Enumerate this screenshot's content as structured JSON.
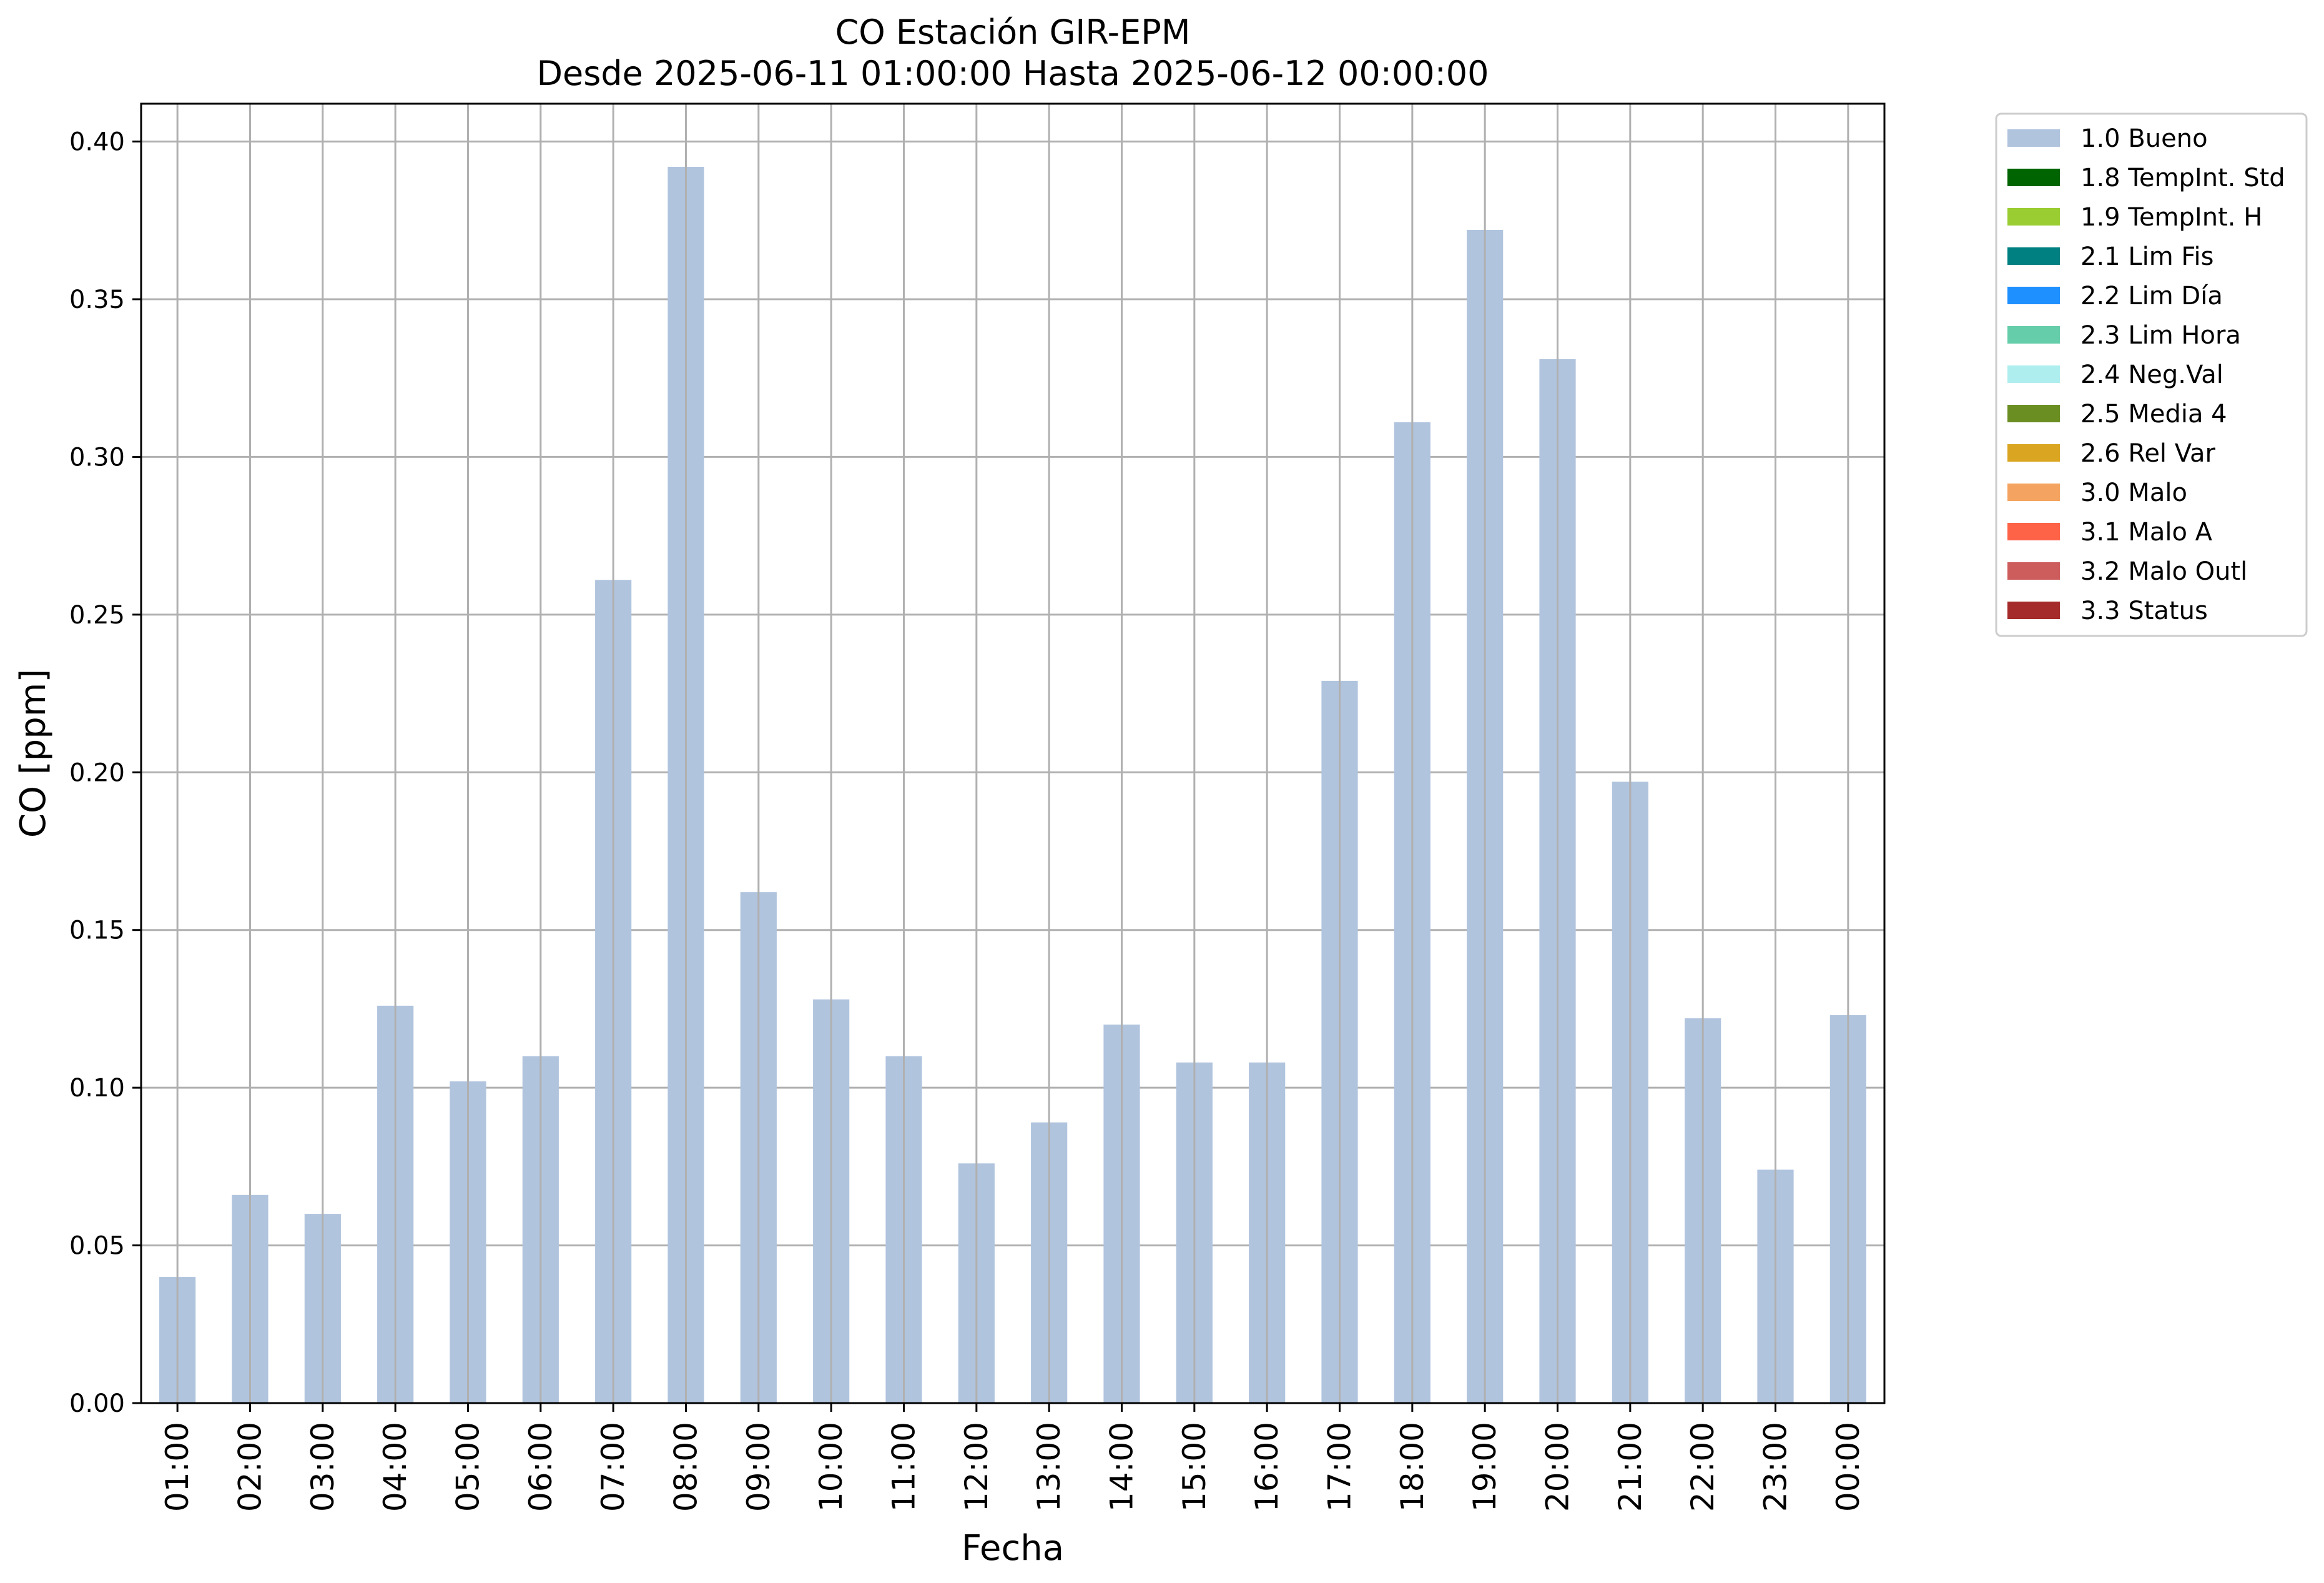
{
  "chart_data": {
    "type": "bar",
    "title": "CO Estación GIR-EPM",
    "subtitle": "Desde 2025-06-11 01:00:00 Hasta 2025-06-12 00:00:00",
    "xlabel": "Fecha",
    "ylabel": "CO [ppm]",
    "ylim": [
      0,
      0.412
    ],
    "yticks": [
      "0.00",
      "0.05",
      "0.10",
      "0.15",
      "0.20",
      "0.25",
      "0.30",
      "0.35",
      "0.40"
    ],
    "ytick_values": [
      0,
      0.05,
      0.1,
      0.15,
      0.2,
      0.25,
      0.3,
      0.35,
      0.4
    ],
    "grid": true,
    "legend_position": "outside-right",
    "categories": [
      "01:00",
      "02:00",
      "03:00",
      "04:00",
      "05:00",
      "06:00",
      "07:00",
      "08:00",
      "09:00",
      "10:00",
      "11:00",
      "12:00",
      "13:00",
      "14:00",
      "15:00",
      "16:00",
      "17:00",
      "18:00",
      "19:00",
      "20:00",
      "21:00",
      "22:00",
      "23:00",
      "00:00"
    ],
    "series": [
      {
        "name": "1.0 Bueno",
        "color": "#b0c4de",
        "values": [
          0.04,
          0.066,
          0.06,
          0.126,
          0.102,
          0.11,
          0.261,
          0.392,
          0.162,
          0.128,
          0.11,
          0.076,
          0.089,
          0.12,
          0.108,
          0.108,
          0.229,
          0.311,
          0.372,
          0.331,
          0.197,
          0.122,
          0.074,
          0.123
        ]
      }
    ],
    "legend": [
      {
        "label": "1.0 Bueno",
        "color": "#b0c4de"
      },
      {
        "label": "1.8 TempInt. Std",
        "color": "#006400"
      },
      {
        "label": "1.9 TempInt. H",
        "color": "#9acd32"
      },
      {
        "label": "2.1 Lim Fis",
        "color": "#008080"
      },
      {
        "label": "2.2 Lim Día",
        "color": "#1e90ff"
      },
      {
        "label": "2.3 Lim Hora",
        "color": "#66cdaa"
      },
      {
        "label": "2.4 Neg.Val",
        "color": "#afeeee"
      },
      {
        "label": "2.5 Media 4",
        "color": "#6b8e23"
      },
      {
        "label": "2.6 Rel Var",
        "color": "#daa520"
      },
      {
        "label": "3.0 Malo",
        "color": "#f4a460"
      },
      {
        "label": "3.1 Malo A",
        "color": "#ff6347"
      },
      {
        "label": "3.2 Malo Outl",
        "color": "#cd5c5c"
      },
      {
        "label": "3.3 Status",
        "color": "#a52a2a"
      }
    ]
  }
}
